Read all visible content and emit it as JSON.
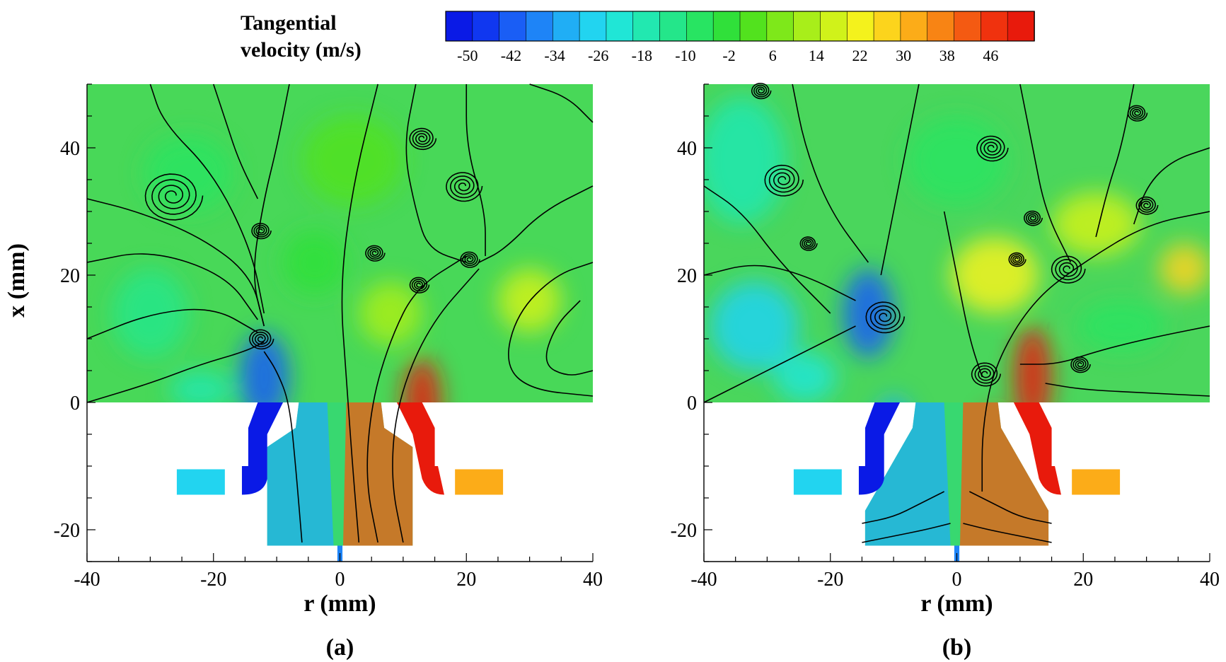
{
  "colorbar": {
    "title_line1": "Tangential",
    "title_line2": "velocity  (m/s)",
    "min": -54,
    "max": 54,
    "ticks": [
      "-50",
      "-42",
      "-34",
      "-26",
      "-18",
      "-10",
      "-2",
      "6",
      "14",
      "22",
      "30",
      "38",
      "46"
    ],
    "colors": [
      "#0a1ae6",
      "#1037f0",
      "#1a5ef5",
      "#1e84f7",
      "#20aef5",
      "#22d4f0",
      "#20e6d6",
      "#22e8b0",
      "#24e68a",
      "#28e462",
      "#30e03a",
      "#52e21e",
      "#7ee81a",
      "#a8ee1a",
      "#d0f21a",
      "#f4f21c",
      "#fcd41c",
      "#fcac18",
      "#f88414",
      "#f45a12",
      "#f0320e",
      "#e81a0c"
    ]
  },
  "chart_data": [
    {
      "type": "heatmap",
      "panel_label": "(a)",
      "xlabel": "r (mm)",
      "ylabel": "x (mm)",
      "xlim": [
        -40,
        40
      ],
      "ylim": [
        -25,
        50
      ],
      "xticks": [
        "-40",
        "-20",
        "0",
        "20",
        "40"
      ],
      "yticks": [
        "-20",
        "0",
        "20",
        "40"
      ],
      "background": "#48d858",
      "patches": [
        {
          "r": -24,
          "x": 36,
          "w": 14,
          "h": 12,
          "v": -8
        },
        {
          "r": -30,
          "x": 14,
          "w": 12,
          "h": 14,
          "v": -12
        },
        {
          "r": -12,
          "x": 4,
          "w": 8,
          "h": 14,
          "v": -44
        },
        {
          "r": -7,
          "x": -12,
          "w": 5,
          "h": 18,
          "v": -38
        },
        {
          "r": 3,
          "x": -14,
          "w": 4,
          "h": 18,
          "v": 48
        },
        {
          "r": 13,
          "x": 0,
          "w": 6,
          "h": 14,
          "v": 50
        },
        {
          "r": 30,
          "x": 16,
          "w": 10,
          "h": 10,
          "v": 18
        },
        {
          "r": 8,
          "x": 14,
          "w": 10,
          "h": 10,
          "v": 10
        },
        {
          "r": -22,
          "x": 2,
          "w": 10,
          "h": 6,
          "v": -16
        },
        {
          "r": 2,
          "x": 38,
          "w": 16,
          "h": 14,
          "v": 2
        },
        {
          "r": -4,
          "x": 22,
          "w": 10,
          "h": 10,
          "v": -4
        }
      ],
      "shapes": [
        {
          "kind": "left-slot",
          "v": -52
        },
        {
          "kind": "right-slot",
          "v": 52
        },
        {
          "kind": "left-bar",
          "v": -26
        },
        {
          "kind": "right-bar",
          "v": 30
        }
      ],
      "streamlines": [
        [
          [
            -40,
            0
          ],
          [
            -30,
            3
          ],
          [
            -22,
            6
          ],
          [
            -15,
            8
          ],
          [
            -12,
            9.5
          ]
        ],
        [
          [
            -40,
            10
          ],
          [
            -30,
            14
          ],
          [
            -20,
            15
          ],
          [
            -13,
            11
          ]
        ],
        [
          [
            -40,
            22
          ],
          [
            -30,
            24
          ],
          [
            -18,
            20
          ],
          [
            -13,
            13
          ]
        ],
        [
          [
            -40,
            32
          ],
          [
            -32,
            30
          ],
          [
            -22,
            26
          ],
          [
            -14,
            20
          ],
          [
            -12,
            12
          ]
        ],
        [
          [
            -30,
            50
          ],
          [
            -28,
            44
          ],
          [
            -20,
            36
          ],
          [
            -14,
            24
          ],
          [
            -12,
            14
          ]
        ],
        [
          [
            -6,
            -22
          ],
          [
            -7,
            -10
          ],
          [
            -8,
            0
          ],
          [
            -10,
            5
          ],
          [
            -12,
            8
          ]
        ],
        [
          [
            6,
            -22
          ],
          [
            4,
            -12
          ],
          [
            5,
            0
          ],
          [
            8,
            10
          ],
          [
            12,
            18
          ],
          [
            20,
            23
          ]
        ],
        [
          [
            10,
            -22
          ],
          [
            8,
            -12
          ],
          [
            9,
            0
          ],
          [
            14,
            12
          ],
          [
            22,
            21
          ]
        ],
        [
          [
            3,
            -22
          ],
          [
            2,
            -10
          ],
          [
            1,
            4
          ],
          [
            0,
            18
          ],
          [
            2,
            34
          ],
          [
            6,
            50
          ]
        ],
        [
          [
            20,
            50
          ],
          [
            20,
            40
          ],
          [
            23,
            30
          ],
          [
            23,
            23
          ]
        ],
        [
          [
            40,
            34
          ],
          [
            32,
            30
          ],
          [
            26,
            24
          ],
          [
            22,
            22
          ]
        ],
        [
          [
            40,
            22
          ],
          [
            34,
            20
          ],
          [
            28,
            14
          ],
          [
            26,
            6
          ],
          [
            30,
            2
          ],
          [
            40,
            1
          ]
        ],
        [
          [
            40,
            44
          ],
          [
            36,
            48
          ],
          [
            30,
            50
          ]
        ],
        [
          [
            -8,
            50
          ],
          [
            -10,
            40
          ],
          [
            -12,
            32
          ],
          [
            -14,
            20
          ],
          [
            -12,
            12
          ]
        ],
        [
          [
            12,
            50
          ],
          [
            10,
            40
          ],
          [
            12,
            30
          ],
          [
            14,
            24
          ],
          [
            20,
            22
          ]
        ],
        [
          [
            -20,
            50
          ],
          [
            -18,
            44
          ],
          [
            -16,
            38
          ],
          [
            -13,
            32
          ]
        ],
        [
          [
            38,
            16
          ],
          [
            34,
            12
          ],
          [
            32,
            6
          ],
          [
            36,
            4
          ],
          [
            40,
            5
          ]
        ]
      ],
      "vortices": [
        {
          "r": -26.5,
          "x": 32.5,
          "rad": 4.8
        },
        {
          "r": 19.5,
          "x": 34,
          "rad": 3
        },
        {
          "r": 13,
          "x": 41.5,
          "rad": 2.2
        },
        {
          "r": -12.5,
          "x": 10,
          "rad": 2
        },
        {
          "r": -12.5,
          "x": 27,
          "rad": 1.6
        },
        {
          "r": 5.5,
          "x": 23.5,
          "rad": 1.6
        },
        {
          "r": 12.5,
          "x": 18.5,
          "rad": 1.6
        },
        {
          "r": 20.5,
          "x": 22.5,
          "rad": 1.6
        }
      ]
    },
    {
      "type": "heatmap",
      "panel_label": "(b)",
      "xlabel": "r (mm)",
      "ylabel": "",
      "xlim": [
        -40,
        40
      ],
      "ylim": [
        -25,
        50
      ],
      "xticks": [
        "-40",
        "-20",
        "0",
        "20",
        "40"
      ],
      "yticks": [
        "-20",
        "0",
        "20",
        "40"
      ],
      "background": "#4ad65c",
      "patches": [
        {
          "r": -34,
          "x": 38,
          "w": 14,
          "h": 20,
          "v": -18
        },
        {
          "r": -32,
          "x": 12,
          "w": 14,
          "h": 14,
          "v": -26
        },
        {
          "r": -14,
          "x": 14,
          "w": 8,
          "h": 14,
          "v": -40
        },
        {
          "r": -10,
          "x": -10,
          "w": 8,
          "h": 22,
          "v": -34
        },
        {
          "r": 6,
          "x": -12,
          "w": 6,
          "h": 22,
          "v": 46
        },
        {
          "r": 12,
          "x": 4,
          "w": 6,
          "h": 16,
          "v": 50
        },
        {
          "r": 6,
          "x": 20,
          "w": 14,
          "h": 12,
          "v": 24
        },
        {
          "r": 22,
          "x": 28,
          "w": 14,
          "h": 10,
          "v": 18
        },
        {
          "r": 36,
          "x": 21,
          "w": 8,
          "h": 8,
          "v": 26
        },
        {
          "r": 26,
          "x": 12,
          "w": 14,
          "h": 8,
          "v": -6
        },
        {
          "r": 0,
          "x": 38,
          "w": 16,
          "h": 14,
          "v": -6
        },
        {
          "r": -24,
          "x": 4,
          "w": 10,
          "h": 8,
          "v": -20
        }
      ],
      "shapes": [
        {
          "kind": "left-slot",
          "v": -52
        },
        {
          "kind": "right-slot",
          "v": 52
        },
        {
          "kind": "left-bar",
          "v": -26
        },
        {
          "kind": "right-bar",
          "v": 30
        }
      ],
      "streamlines": [
        [
          [
            -15,
            -22
          ],
          [
            -10,
            -21
          ],
          [
            -5,
            -20
          ],
          [
            -1,
            -19
          ]
        ],
        [
          [
            -15,
            -19
          ],
          [
            -10,
            -18
          ],
          [
            -6,
            -16
          ],
          [
            -2,
            -14
          ]
        ],
        [
          [
            15,
            -22
          ],
          [
            10,
            -21
          ],
          [
            5,
            -20
          ],
          [
            1,
            -19
          ]
        ],
        [
          [
            15,
            -19
          ],
          [
            10,
            -18
          ],
          [
            6,
            -16
          ],
          [
            2,
            -14
          ]
        ],
        [
          [
            -40,
            0
          ],
          [
            -32,
            4
          ],
          [
            -24,
            8
          ],
          [
            -16,
            12
          ]
        ],
        [
          [
            -40,
            20
          ],
          [
            -32,
            22
          ],
          [
            -24,
            20
          ],
          [
            -16,
            16
          ]
        ],
        [
          [
            -40,
            34
          ],
          [
            -34,
            30
          ],
          [
            -28,
            22
          ],
          [
            -20,
            14
          ]
        ],
        [
          [
            -26,
            50
          ],
          [
            -24,
            40
          ],
          [
            -20,
            30
          ],
          [
            -14,
            22
          ]
        ],
        [
          [
            4,
            -14
          ],
          [
            4,
            -4
          ],
          [
            6,
            6
          ],
          [
            12,
            16
          ],
          [
            20,
            22
          ],
          [
            30,
            28
          ],
          [
            40,
            30
          ]
        ],
        [
          [
            40,
            12
          ],
          [
            30,
            10
          ],
          [
            22,
            8
          ],
          [
            16,
            6
          ],
          [
            10,
            6
          ]
        ],
        [
          [
            40,
            1
          ],
          [
            30,
            1.5
          ],
          [
            20,
            2
          ],
          [
            14,
            3
          ]
        ],
        [
          [
            -6,
            50
          ],
          [
            -8,
            40
          ],
          [
            -10,
            30
          ],
          [
            -12,
            20
          ]
        ],
        [
          [
            10,
            50
          ],
          [
            12,
            40
          ],
          [
            14,
            30
          ],
          [
            18,
            22
          ]
        ],
        [
          [
            28,
            50
          ],
          [
            26,
            40
          ],
          [
            24,
            34
          ],
          [
            22,
            26
          ]
        ],
        [
          [
            40,
            40
          ],
          [
            34,
            38
          ],
          [
            30,
            34
          ],
          [
            28,
            28
          ]
        ],
        [
          [
            -2,
            30
          ],
          [
            0,
            20
          ],
          [
            2,
            10
          ],
          [
            4,
            4
          ]
        ]
      ],
      "vortices": [
        {
          "r": -27.5,
          "x": 35,
          "rad": 3.2
        },
        {
          "r": 5.5,
          "x": 40,
          "rad": 2.6
        },
        {
          "r": 17.5,
          "x": 21,
          "rad": 2.8
        },
        {
          "r": -11.5,
          "x": 13.5,
          "rad": 3.2
        },
        {
          "r": 4.5,
          "x": 4.5,
          "rad": 2.4
        },
        {
          "r": -31,
          "x": 49,
          "rad": 1.6
        },
        {
          "r": 28.5,
          "x": 45.5,
          "rad": 1.6
        },
        {
          "r": 30,
          "x": 31,
          "rad": 1.8
        },
        {
          "r": 12,
          "x": 29,
          "rad": 1.5
        },
        {
          "r": 9.5,
          "x": 22.5,
          "rad": 1.4
        },
        {
          "r": -23.5,
          "x": 25,
          "rad": 1.4
        },
        {
          "r": 19.5,
          "x": 6,
          "rad": 1.6
        }
      ]
    }
  ]
}
